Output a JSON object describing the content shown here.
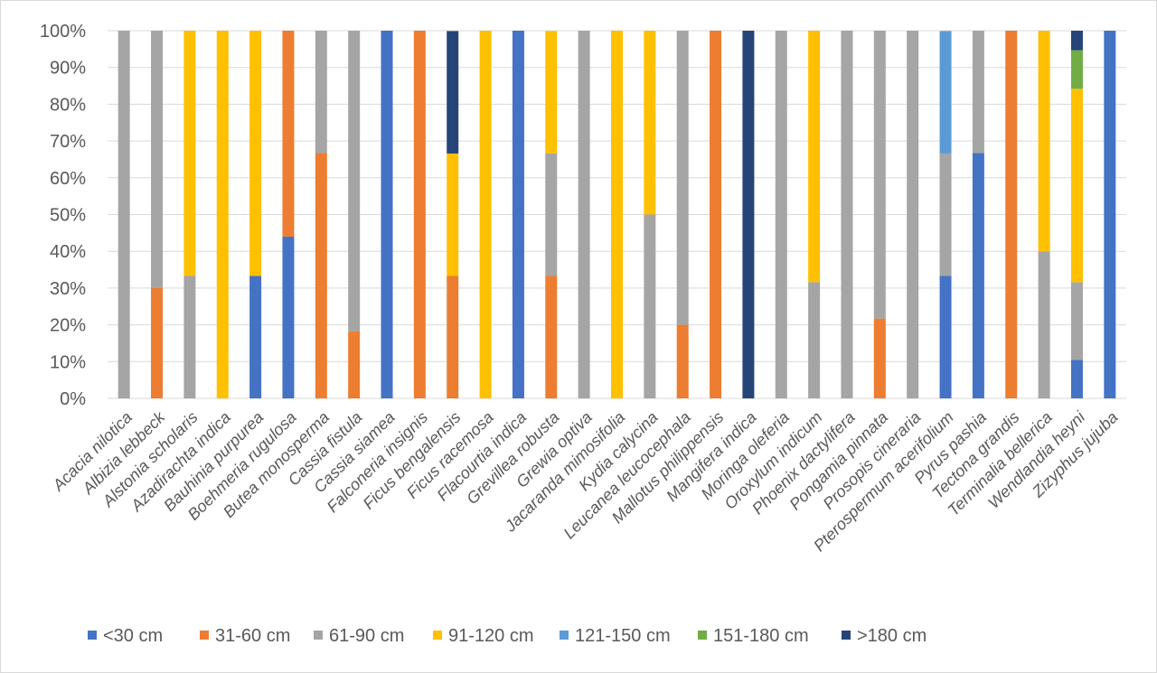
{
  "chart_data": {
    "type": "bar",
    "stacked": true,
    "percent": true,
    "title": "",
    "xlabel": "",
    "ylabel": "",
    "ylim": [
      0,
      100
    ],
    "yticks": [
      "0%",
      "10%",
      "20%",
      "30%",
      "40%",
      "50%",
      "60%",
      "70%",
      "80%",
      "90%",
      "100%"
    ],
    "grid": true,
    "legend_position": "bottom",
    "categories": [
      "Acacia nilotica",
      "Albizia lebbeck",
      "Alstonia scholaris",
      "Azadirachta indica",
      "Bauhinia purpurea",
      "Boehmeria rugulosa",
      "Butea monosperma",
      "Cassia fistula",
      "Cassia siamea",
      "Falconeria insignis",
      "Ficus bengalensis",
      "Ficus racemosa",
      "Flacourtia indica",
      "Grevillea robusta",
      "Grewia optiva",
      "Jacaranda mimosifolia",
      "Kydia calycina",
      "Leucanea leucocephala",
      "Mallotus philippensis",
      "Mangifera indica",
      "Moringa oleferia",
      "Oroxylum indicum",
      "Phoenix dactylifera",
      "Pongamia pinnata",
      "Prosopis cineraria",
      "Pterospermum acerifolium",
      "Pyrus pashia",
      "Tectona grandis",
      "Terminalia bellerica",
      "Wendlandia heyni",
      "Zizyphus jujuba"
    ],
    "series": [
      {
        "name": "<30 cm",
        "color": "#4472c4",
        "values": [
          0,
          0,
          0,
          0,
          33.3,
          44,
          0,
          0,
          100,
          0,
          0,
          0,
          100,
          0,
          0,
          0,
          0,
          0,
          0,
          0,
          0,
          0,
          0,
          0,
          0,
          33.3,
          66.7,
          0,
          0,
          10.5,
          100
        ]
      },
      {
        "name": "31-60 cm",
        "color": "#ed7d31",
        "values": [
          0,
          30,
          0,
          0,
          0,
          56,
          66.7,
          18.2,
          0,
          100,
          33.3,
          0,
          0,
          33.3,
          0,
          0,
          0,
          20,
          100,
          0,
          0,
          0,
          0,
          21.7,
          0,
          0,
          0,
          100,
          0,
          0,
          0
        ]
      },
      {
        "name": "61-90 cm",
        "color": "#a5a5a5",
        "values": [
          100,
          70,
          33.3,
          0,
          0,
          0,
          33.3,
          81.8,
          0,
          0,
          0,
          0,
          0,
          33.3,
          100,
          0,
          50,
          80,
          0,
          0,
          100,
          31.6,
          100,
          78.3,
          100,
          33.3,
          33.3,
          0,
          40,
          21.1,
          0
        ]
      },
      {
        "name": "91-120 cm",
        "color": "#ffc000",
        "values": [
          0,
          0,
          66.7,
          100,
          66.7,
          0,
          0,
          0,
          0,
          0,
          33.3,
          100,
          0,
          33.3,
          0,
          100,
          50,
          0,
          0,
          0,
          0,
          68.4,
          0,
          0,
          0,
          0,
          0,
          0,
          60,
          52.6,
          0
        ]
      },
      {
        "name": "121-150 cm",
        "color": "#5b9bd5",
        "values": [
          0,
          0,
          0,
          0,
          0,
          0,
          0,
          0,
          0,
          0,
          0,
          0,
          0,
          0,
          0,
          0,
          0,
          0,
          0,
          0,
          0,
          0,
          0,
          0,
          0,
          33.3,
          0,
          0,
          0,
          0,
          0
        ]
      },
      {
        "name": "151-180 cm",
        "color": "#70ad47",
        "values": [
          0,
          0,
          0,
          0,
          0,
          0,
          0,
          0,
          0,
          0,
          0,
          0,
          0,
          0,
          0,
          0,
          0,
          0,
          0,
          0,
          0,
          0,
          0,
          0,
          0,
          0,
          0,
          0,
          0,
          10.5,
          0
        ]
      },
      {
        "name": ">180 cm",
        "color": "#264478",
        "values": [
          0,
          0,
          0,
          0,
          0,
          0,
          0,
          0,
          0,
          0,
          33.3,
          0,
          0,
          0,
          0,
          0,
          0,
          0,
          0,
          100,
          0,
          0,
          0,
          0,
          0,
          0,
          0,
          0,
          0,
          5.3,
          0
        ]
      }
    ]
  }
}
